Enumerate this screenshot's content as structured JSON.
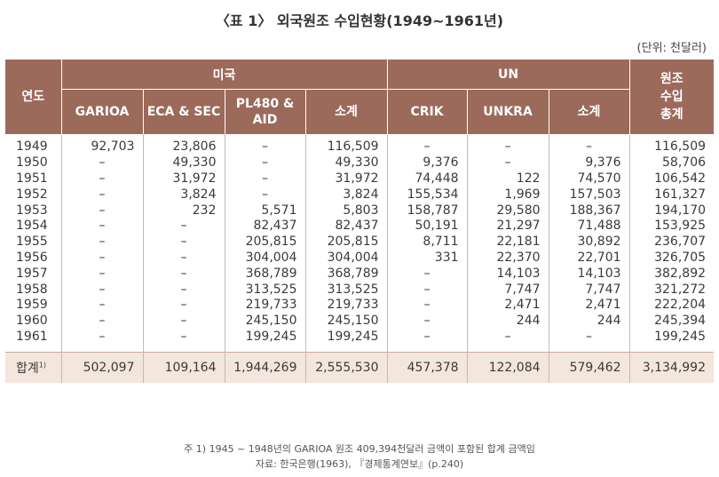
{
  "title": "〈표 1〉 외국원조 수입현황(1949~1961년)",
  "unit": "(단위: 천달러)",
  "headers": {
    "year": "연도",
    "usa": "미국",
    "un": "UN",
    "total_line1": "원조",
    "total_line2": "수입",
    "total_line3": "총계",
    "garioa": "GARIOA",
    "ecasec": "ECA & SEC",
    "pl480_line1": "PL480 &",
    "pl480_line2": "AID",
    "usa_sub": "소계",
    "crik": "CRIK",
    "unkra": "UNKRA",
    "un_sub": "소계"
  },
  "rows": [
    {
      "year": "1949",
      "garioa": "92,703",
      "ecasec": "23,806",
      "pl480": "–",
      "usa_sub": "116,509",
      "crik": "–",
      "unkra": "–",
      "un_sub": "–",
      "total": "116,509"
    },
    {
      "year": "1950",
      "garioa": "–",
      "ecasec": "49,330",
      "pl480": "–",
      "usa_sub": "49,330",
      "crik": "9,376",
      "unkra": "–",
      "un_sub": "9,376",
      "total": "58,706"
    },
    {
      "year": "1951",
      "garioa": "–",
      "ecasec": "31,972",
      "pl480": "–",
      "usa_sub": "31,972",
      "crik": "74,448",
      "unkra": "122",
      "un_sub": "74,570",
      "total": "106,542"
    },
    {
      "year": "1952",
      "garioa": "–",
      "ecasec": "3,824",
      "pl480": "–",
      "usa_sub": "3,824",
      "crik": "155,534",
      "unkra": "1,969",
      "un_sub": "157,503",
      "total": "161,327"
    },
    {
      "year": "1953",
      "garioa": "–",
      "ecasec": "232",
      "pl480": "5,571",
      "usa_sub": "5,803",
      "crik": "158,787",
      "unkra": "29,580",
      "un_sub": "188,367",
      "total": "194,170"
    },
    {
      "year": "1954",
      "garioa": "–",
      "ecasec": "–",
      "pl480": "82,437",
      "usa_sub": "82,437",
      "crik": "50,191",
      "unkra": "21,297",
      "un_sub": "71,488",
      "total": "153,925"
    },
    {
      "year": "1955",
      "garioa": "–",
      "ecasec": "–",
      "pl480": "205,815",
      "usa_sub": "205,815",
      "crik": "8,711",
      "unkra": "22,181",
      "un_sub": "30,892",
      "total": "236,707"
    },
    {
      "year": "1956",
      "garioa": "–",
      "ecasec": "–",
      "pl480": "304,004",
      "usa_sub": "304,004",
      "crik": "331",
      "unkra": "22,370",
      "un_sub": "22,701",
      "total": "326,705"
    },
    {
      "year": "1957",
      "garioa": "–",
      "ecasec": "–",
      "pl480": "368,789",
      "usa_sub": "368,789",
      "crik": "–",
      "unkra": "14,103",
      "un_sub": "14,103",
      "total": "382,892"
    },
    {
      "year": "1958",
      "garioa": "–",
      "ecasec": "–",
      "pl480": "313,525",
      "usa_sub": "313,525",
      "crik": "–",
      "unkra": "7,747",
      "un_sub": "7,747",
      "total": "321,272"
    },
    {
      "year": "1959",
      "garioa": "–",
      "ecasec": "–",
      "pl480": "219,733",
      "usa_sub": "219,733",
      "crik": "–",
      "unkra": "2,471",
      "un_sub": "2,471",
      "total": "222,204"
    },
    {
      "year": "1960",
      "garioa": "–",
      "ecasec": "–",
      "pl480": "245,150",
      "usa_sub": "245,150",
      "crik": "–",
      "unkra": "244",
      "un_sub": "244",
      "total": "245,394"
    },
    {
      "year": "1961",
      "garioa": "–",
      "ecasec": "–",
      "pl480": "199,245",
      "usa_sub": "199,245",
      "crik": "–",
      "unkra": "–",
      "un_sub": "–",
      "total": "199,245"
    }
  ],
  "totals": {
    "label": "합계",
    "label_sup": "1)",
    "garioa": "502,097",
    "ecasec": "109,164",
    "pl480": "1,944,269",
    "usa_sub": "2,555,530",
    "crik": "457,378",
    "unkra": "122,084",
    "un_sub": "579,462",
    "total": "3,134,992"
  },
  "notes": {
    "footnote": "주 1) 1945 ~ 1948년의 GARIOA 원조 409,394천달러 금액이 포함된 합계 금액임",
    "source": "자료: 한국은행(1963), 『경제통계연보』(p.240)"
  }
}
